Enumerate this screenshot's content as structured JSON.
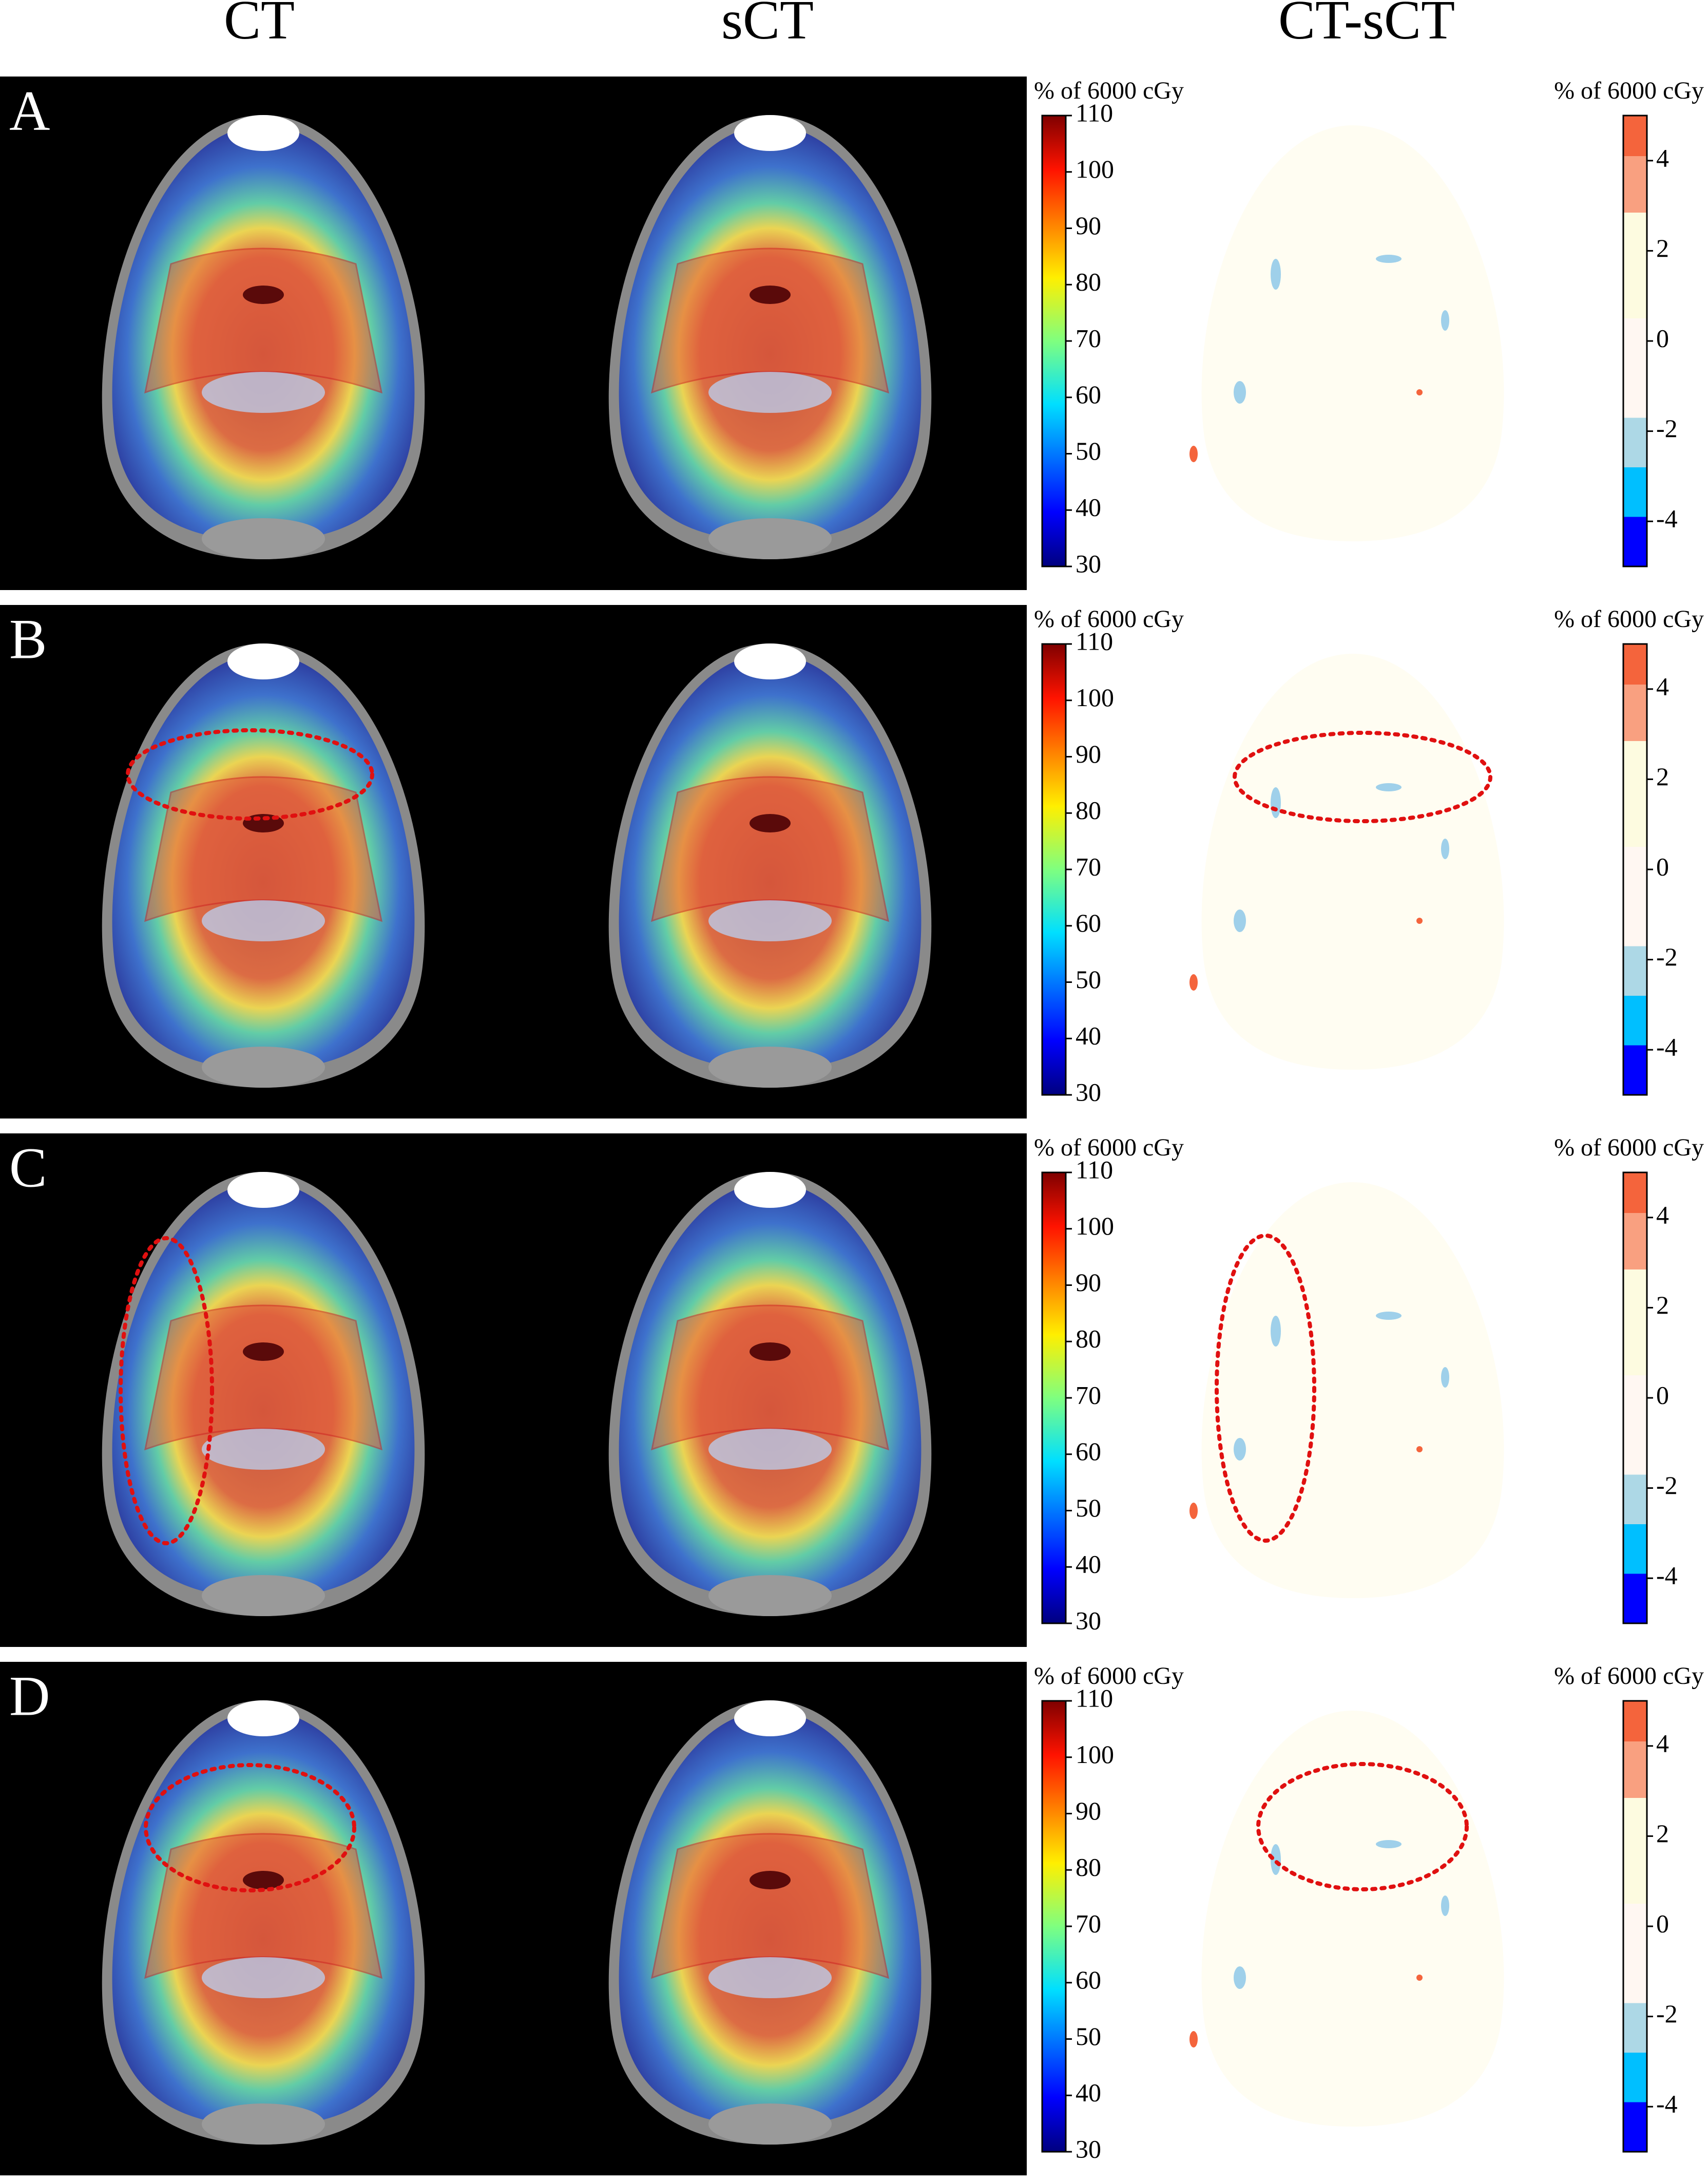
{
  "headers": [
    "CT",
    "sCT",
    "CT-sCT"
  ],
  "rows": [
    {
      "label": "A",
      "dose_colorbar": {
        "title": "% of 6000 cGy",
        "lim": [
          30,
          110
        ],
        "ticks": [
          30,
          40,
          50,
          60,
          70,
          80,
          90,
          100,
          110
        ]
      },
      "diff_colorbar": {
        "title": "% of 6000 cGy",
        "lim": [
          -5,
          5
        ],
        "ticks": [
          -4,
          -2,
          0,
          2,
          4
        ]
      }
    },
    {
      "label": "B",
      "dose_colorbar": {
        "title": "% of 6000 cGy",
        "lim": [
          30,
          110
        ],
        "ticks": [
          30,
          40,
          50,
          60,
          70,
          80,
          90,
          100,
          110
        ]
      },
      "diff_colorbar": {
        "title": "% of 6000 cGy",
        "lim": [
          -5,
          5
        ],
        "ticks": [
          -4,
          -2,
          0,
          2,
          4
        ]
      }
    },
    {
      "label": "C",
      "dose_colorbar": {
        "title": "% of 6000 cGy",
        "lim": [
          30,
          110
        ],
        "ticks": [
          30,
          40,
          50,
          60,
          70,
          80,
          90,
          100,
          110
        ]
      },
      "diff_colorbar": {
        "title": "% of 6000 cGy",
        "lim": [
          -5,
          5
        ],
        "ticks": [
          -4,
          -2,
          0,
          2,
          4
        ]
      }
    },
    {
      "label": "D",
      "dose_colorbar": {
        "title": "% of 6000 cGy",
        "lim": [
          30,
          110
        ],
        "ticks": [
          30,
          40,
          50,
          60,
          70,
          80,
          90,
          100,
          110
        ]
      },
      "diff_colorbar": {
        "title": "% of 6000 cGy",
        "lim": [
          -5,
          5
        ],
        "ticks": [
          -4,
          -2,
          0,
          2,
          4
        ]
      }
    }
  ]
}
